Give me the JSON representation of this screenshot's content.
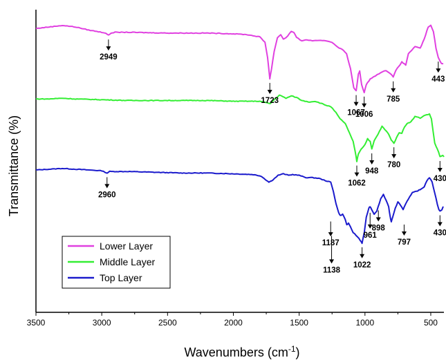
{
  "chart_data": {
    "type": "line",
    "title": "",
    "xlabel": "Wavenumbers (cm",
    "xlabel_sup": "-1",
    "xlabel_tail": ")",
    "ylabel": "Transmittance (%)",
    "xlim": [
      3500,
      400
    ],
    "x_reversed": true,
    "x_ticks": [
      3500,
      3000,
      2500,
      2000,
      1500,
      1000,
      500
    ],
    "y_ticks_shown": false,
    "grid": false,
    "legend_position": "bottom-left",
    "series": [
      {
        "name": "Lower Layer",
        "color": "#e040e0",
        "offset": 2,
        "points": [
          [
            3500,
            0.88
          ],
          [
            3400,
            0.9
          ],
          [
            3300,
            0.92
          ],
          [
            3200,
            0.9
          ],
          [
            3100,
            0.86
          ],
          [
            3000,
            0.83
          ],
          [
            2970,
            0.82
          ],
          [
            2949,
            0.79
          ],
          [
            2930,
            0.82
          ],
          [
            2900,
            0.83
          ],
          [
            2800,
            0.83
          ],
          [
            2500,
            0.82
          ],
          [
            2200,
            0.82
          ],
          [
            2000,
            0.81
          ],
          [
            1900,
            0.8
          ],
          [
            1800,
            0.77
          ],
          [
            1760,
            0.7
          ],
          [
            1740,
            0.5
          ],
          [
            1723,
            0.22
          ],
          [
            1710,
            0.35
          ],
          [
            1690,
            0.58
          ],
          [
            1665,
            0.76
          ],
          [
            1640,
            0.8
          ],
          [
            1620,
            0.74
          ],
          [
            1600,
            0.76
          ],
          [
            1560,
            0.84
          ],
          [
            1540,
            0.83
          ],
          [
            1520,
            0.76
          ],
          [
            1480,
            0.72
          ],
          [
            1440,
            0.73
          ],
          [
            1400,
            0.72
          ],
          [
            1300,
            0.72
          ],
          [
            1250,
            0.7
          ],
          [
            1210,
            0.64
          ],
          [
            1170,
            0.6
          ],
          [
            1140,
            0.55
          ],
          [
            1110,
            0.35
          ],
          [
            1085,
            0.1
          ],
          [
            1067,
            0.06
          ],
          [
            1050,
            0.28
          ],
          [
            1040,
            0.32
          ],
          [
            1025,
            0.14
          ],
          [
            1006,
            0.04
          ],
          [
            990,
            0.14
          ],
          [
            960,
            0.22
          ],
          [
            920,
            0.26
          ],
          [
            880,
            0.3
          ],
          [
            840,
            0.33
          ],
          [
            800,
            0.28
          ],
          [
            785,
            0.24
          ],
          [
            765,
            0.33
          ],
          [
            720,
            0.44
          ],
          [
            690,
            0.4
          ],
          [
            670,
            0.55
          ],
          [
            620,
            0.64
          ],
          [
            580,
            0.62
          ],
          [
            550,
            0.74
          ],
          [
            520,
            0.9
          ],
          [
            500,
            0.92
          ],
          [
            480,
            0.84
          ],
          [
            460,
            0.62
          ],
          [
            443,
            0.5
          ],
          [
            420,
            0.42
          ],
          [
            405,
            0.42
          ]
        ],
        "peaks": [
          2949,
          1723,
          1067,
          1006,
          785,
          443
        ]
      },
      {
        "name": "Middle Layer",
        "color": "#33ee33",
        "offset": 1,
        "points": [
          [
            3500,
            0.88
          ],
          [
            3400,
            0.88
          ],
          [
            3300,
            0.89
          ],
          [
            3200,
            0.88
          ],
          [
            3000,
            0.87
          ],
          [
            2800,
            0.86
          ],
          [
            2500,
            0.86
          ],
          [
            2200,
            0.86
          ],
          [
            2000,
            0.85
          ],
          [
            1800,
            0.85
          ],
          [
            1720,
            0.82
          ],
          [
            1690,
            0.87
          ],
          [
            1650,
            0.93
          ],
          [
            1600,
            0.89
          ],
          [
            1560,
            0.92
          ],
          [
            1520,
            0.9
          ],
          [
            1480,
            0.86
          ],
          [
            1420,
            0.84
          ],
          [
            1380,
            0.85
          ],
          [
            1330,
            0.82
          ],
          [
            1300,
            0.8
          ],
          [
            1260,
            0.78
          ],
          [
            1220,
            0.7
          ],
          [
            1190,
            0.62
          ],
          [
            1150,
            0.56
          ],
          [
            1120,
            0.44
          ],
          [
            1090,
            0.32
          ],
          [
            1075,
            0.2
          ],
          [
            1062,
            0.06
          ],
          [
            1050,
            0.16
          ],
          [
            1030,
            0.22
          ],
          [
            1000,
            0.28
          ],
          [
            980,
            0.36
          ],
          [
            960,
            0.32
          ],
          [
            948,
            0.22
          ],
          [
            930,
            0.33
          ],
          [
            900,
            0.42
          ],
          [
            870,
            0.52
          ],
          [
            850,
            0.48
          ],
          [
            820,
            0.42
          ],
          [
            800,
            0.34
          ],
          [
            780,
            0.3
          ],
          [
            760,
            0.37
          ],
          [
            740,
            0.44
          ],
          [
            720,
            0.43
          ],
          [
            700,
            0.51
          ],
          [
            680,
            0.56
          ],
          [
            650,
            0.58
          ],
          [
            620,
            0.65
          ],
          [
            580,
            0.63
          ],
          [
            540,
            0.67
          ],
          [
            510,
            0.68
          ],
          [
            495,
            0.62
          ],
          [
            470,
            0.3
          ],
          [
            440,
            0.18
          ],
          [
            430,
            0.12
          ],
          [
            410,
            0.14
          ],
          [
            400,
            0.12
          ]
        ],
        "peaks": [
          1062,
          948,
          780,
          430
        ]
      },
      {
        "name": "Top Layer",
        "color": "#1a1acc",
        "offset": 0,
        "points": [
          [
            3500,
            1.0
          ],
          [
            3400,
            1.01
          ],
          [
            3300,
            1.02
          ],
          [
            3200,
            1.01
          ],
          [
            3000,
            0.99
          ],
          [
            2960,
            0.96
          ],
          [
            2940,
            0.98
          ],
          [
            2900,
            0.98
          ],
          [
            2800,
            0.98
          ],
          [
            2600,
            0.97
          ],
          [
            2400,
            0.96
          ],
          [
            2200,
            0.96
          ],
          [
            2000,
            0.95
          ],
          [
            1850,
            0.94
          ],
          [
            1790,
            0.92
          ],
          [
            1760,
            0.88
          ],
          [
            1730,
            0.84
          ],
          [
            1700,
            0.87
          ],
          [
            1660,
            0.93
          ],
          [
            1620,
            0.95
          ],
          [
            1580,
            0.93
          ],
          [
            1550,
            0.94
          ],
          [
            1500,
            0.93
          ],
          [
            1450,
            0.9
          ],
          [
            1400,
            0.9
          ],
          [
            1350,
            0.89
          ],
          [
            1300,
            0.86
          ],
          [
            1260,
            0.84
          ],
          [
            1240,
            0.72
          ],
          [
            1220,
            0.56
          ],
          [
            1200,
            0.44
          ],
          [
            1187,
            0.4
          ],
          [
            1170,
            0.42
          ],
          [
            1150,
            0.35
          ],
          [
            1138,
            0.28
          ],
          [
            1125,
            0.3
          ],
          [
            1110,
            0.25
          ],
          [
            1090,
            0.18
          ],
          [
            1067,
            0.14
          ],
          [
            1045,
            0.1
          ],
          [
            1030,
            0.06
          ],
          [
            1022,
            0.04
          ],
          [
            1005,
            0.18
          ],
          [
            990,
            0.38
          ],
          [
            970,
            0.5
          ],
          [
            961,
            0.52
          ],
          [
            950,
            0.48
          ],
          [
            930,
            0.42
          ],
          [
            910,
            0.46
          ],
          [
            880,
            0.62
          ],
          [
            860,
            0.68
          ],
          [
            840,
            0.6
          ],
          [
            820,
            0.52
          ],
          [
            810,
            0.4
          ],
          [
            800,
            0.32
          ],
          [
            790,
            0.38
          ],
          [
            770,
            0.5
          ],
          [
            750,
            0.58
          ],
          [
            730,
            0.54
          ],
          [
            710,
            0.48
          ],
          [
            690,
            0.56
          ],
          [
            670,
            0.62
          ],
          [
            640,
            0.7
          ],
          [
            610,
            0.72
          ],
          [
            580,
            0.74
          ],
          [
            550,
            0.78
          ],
          [
            530,
            0.86
          ],
          [
            510,
            0.9
          ],
          [
            490,
            0.84
          ],
          [
            470,
            0.7
          ],
          [
            450,
            0.55
          ],
          [
            438,
            0.48
          ],
          [
            430,
            0.46
          ],
          [
            415,
            0.48
          ],
          [
            405,
            0.52
          ]
        ],
        "peaks": [
          2960,
          1187,
          1138,
          1022,
          961,
          898,
          797,
          430
        ]
      }
    ]
  }
}
